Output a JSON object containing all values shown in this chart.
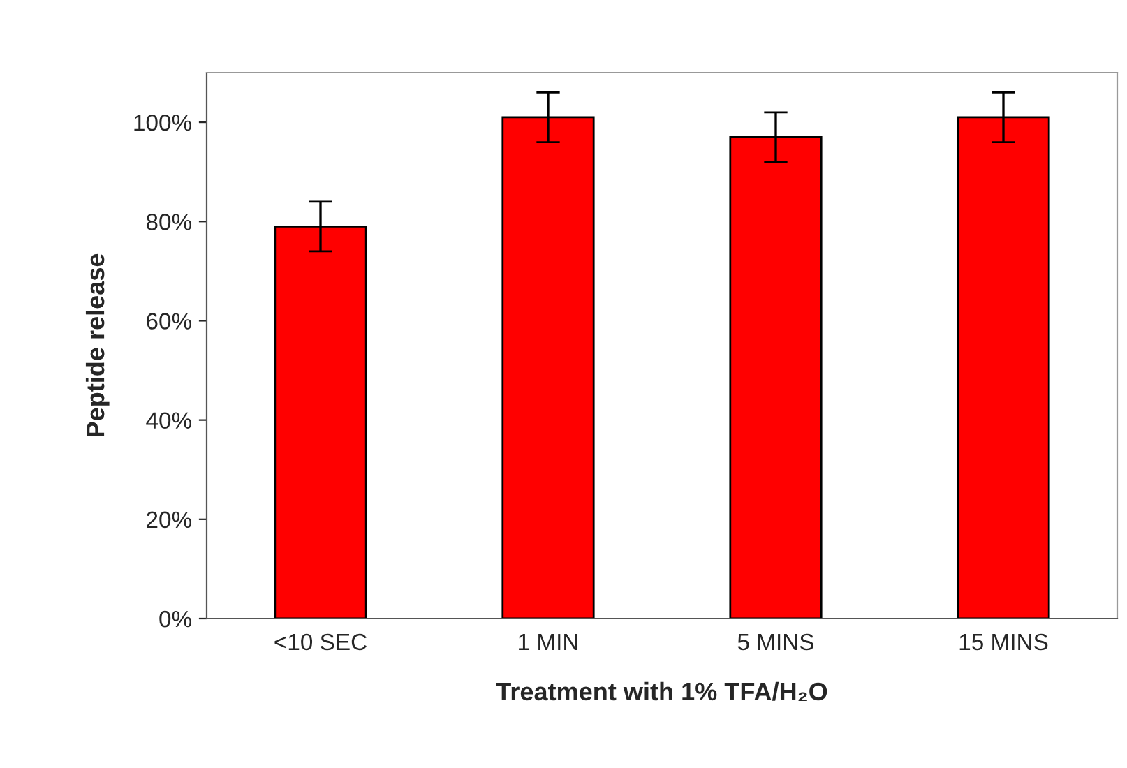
{
  "chart_data": {
    "type": "bar",
    "xlabel": "Treatment with 1% TFA/H₂O",
    "ylabel": "Peptide release",
    "categories": [
      "<10 SEC",
      "1 MIN",
      "5 MINS",
      "15 MINS"
    ],
    "values": [
      79,
      101,
      97,
      101
    ],
    "errors": [
      5,
      5,
      5,
      5
    ],
    "color": "#ff0000",
    "ylim": [
      0,
      110
    ],
    "yticks": [
      {
        "value": 0,
        "label": "0%"
      },
      {
        "value": 20,
        "label": "20%"
      },
      {
        "value": 40,
        "label": "40%"
      },
      {
        "value": 60,
        "label": "60%"
      },
      {
        "value": 80,
        "label": "80%"
      },
      {
        "value": 100,
        "label": "100%"
      }
    ],
    "grid": false
  }
}
